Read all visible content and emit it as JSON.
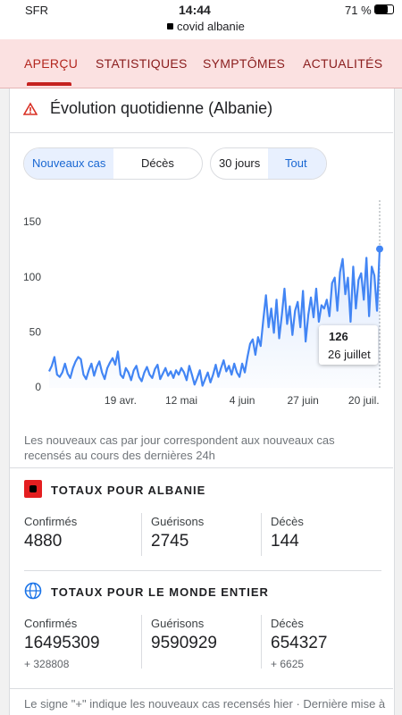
{
  "status_bar": {
    "carrier": "SFR",
    "time": "14:44",
    "battery": "71 %"
  },
  "url": "covid albanie",
  "tabs": [
    "APERÇU",
    "STATISTIQUES",
    "SYMPTÔMES",
    "ACTUALITÉS"
  ],
  "card_title": "Évolution quotidienne (Albanie)",
  "toggles": {
    "metric": [
      "Nouveaux cas",
      "Décès"
    ],
    "range": [
      "30 jours",
      "Tout"
    ]
  },
  "chart_data": {
    "type": "line",
    "categories": [
      null,
      null,
      null,
      null,
      null,
      null,
      null,
      null,
      null,
      null,
      null,
      null,
      null,
      null,
      null,
      null,
      null,
      null,
      null,
      null,
      null,
      null,
      null,
      null,
      null,
      null,
      null,
      "19 avr.",
      null,
      null,
      null,
      null,
      null,
      null,
      null,
      null,
      null,
      null,
      null,
      null,
      null,
      null,
      null,
      null,
      null,
      null,
      null,
      null,
      null,
      null,
      "12 mai",
      null,
      null,
      null,
      null,
      null,
      null,
      null,
      null,
      null,
      null,
      null,
      null,
      null,
      null,
      null,
      null,
      null,
      null,
      null,
      null,
      null,
      null,
      "4 juin",
      null,
      null,
      null,
      null,
      null,
      null,
      null,
      null,
      null,
      null,
      null,
      null,
      null,
      null,
      null,
      null,
      null,
      null,
      null,
      null,
      null,
      null,
      "27 juin",
      null,
      null,
      null,
      null,
      null,
      null,
      null,
      null,
      null,
      null,
      null,
      null,
      null,
      null,
      null,
      null,
      null,
      null,
      null,
      null,
      null,
      null,
      "20 juil.",
      null,
      null,
      null,
      null,
      null,
      null
    ],
    "values": [
      15,
      20,
      28,
      12,
      10,
      14,
      22,
      13,
      9,
      18,
      24,
      28,
      26,
      12,
      8,
      16,
      22,
      11,
      19,
      24,
      14,
      8,
      18,
      23,
      27,
      21,
      33,
      12,
      9,
      18,
      14,
      7,
      16,
      20,
      10,
      6,
      14,
      19,
      12,
      9,
      17,
      21,
      8,
      13,
      18,
      11,
      15,
      9,
      16,
      12,
      18,
      14,
      7,
      20,
      12,
      3,
      9,
      16,
      2,
      8,
      14,
      5,
      12,
      21,
      10,
      18,
      25,
      15,
      20,
      12,
      22,
      14,
      10,
      22,
      14,
      28,
      40,
      44,
      30,
      46,
      38,
      62,
      84,
      55,
      72,
      50,
      80,
      45,
      66,
      90,
      58,
      74,
      48,
      70,
      78,
      55,
      88,
      42,
      66,
      82,
      64,
      90,
      60,
      75,
      72,
      80,
      65,
      95,
      100,
      70,
      105,
      117,
      85,
      100,
      60,
      110,
      72,
      98,
      104,
      80,
      118,
      65,
      110,
      102,
      70,
      126
    ],
    "color": "#4285f4",
    "ylim": [
      0,
      150
    ],
    "yticks": [
      0,
      50,
      100,
      150
    ],
    "grid": false,
    "tooltip_label": "26 juillet"
  },
  "chart_note": "Les nouveaux cas par jour correspondent aux nouveaux cas recensés au cours des dernières 24h",
  "totals_albania": {
    "title": "TOTAUX POUR ALBANIE",
    "stats": [
      {
        "label": "Confirmés",
        "value": 4880
      },
      {
        "label": "Guérisons",
        "value": 2745
      },
      {
        "label": "Décès",
        "value": 144
      }
    ]
  },
  "totals_world": {
    "title": "TOTAUX POUR LE MONDE ENTIER",
    "stats": [
      {
        "label": "Confirmés",
        "value": 16495309,
        "delta": "+ 328808"
      },
      {
        "label": "Guérisons",
        "value": 9590929
      },
      {
        "label": "Décès",
        "value": 654327,
        "delta": "+ 6625"
      }
    ]
  },
  "footnote": "Le signe \"+\" indique les nouveaux cas recensés hier · Dernière mise à"
}
